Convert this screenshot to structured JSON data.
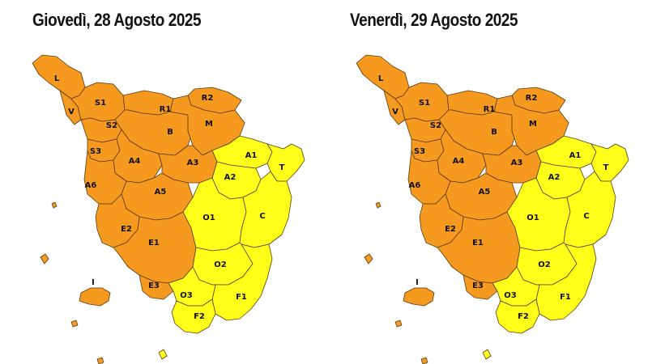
{
  "colors": {
    "orange": "#F59A1E",
    "yellow": "#FFFF1A",
    "border": "#5a3a14"
  },
  "legend_levels": {
    "orange": "orange",
    "yellow": "yellow"
  },
  "panels": [
    {
      "title": "Giovedì, 28 Agosto 2025",
      "zones": {
        "L": "orange",
        "V": "orange",
        "S1": "orange",
        "S2": "orange",
        "S3": "orange",
        "R1": "orange",
        "R2": "orange",
        "B": "orange",
        "M": "orange",
        "A4": "orange",
        "A3": "orange",
        "A5": "orange",
        "A6": "orange",
        "E2": "orange",
        "E1": "orange",
        "E3": "orange",
        "I": "orange",
        "A1": "yellow",
        "T": "yellow",
        "A2": "yellow",
        "O1": "yellow",
        "C": "yellow",
        "O2": "yellow",
        "O3": "yellow",
        "F1": "yellow",
        "F2": "yellow"
      }
    },
    {
      "title": "Venerdì, 29 Agosto 2025",
      "zones": {
        "L": "orange",
        "V": "orange",
        "S1": "orange",
        "S2": "orange",
        "S3": "orange",
        "R1": "orange",
        "R2": "orange",
        "B": "orange",
        "M": "orange",
        "A4": "orange",
        "A3": "orange",
        "A5": "orange",
        "A6": "orange",
        "E2": "orange",
        "E1": "orange",
        "E3": "orange",
        "I": "orange",
        "A1": "yellow",
        "T": "yellow",
        "A2": "yellow",
        "O1": "yellow",
        "C": "yellow",
        "O2": "yellow",
        "O3": "yellow",
        "F1": "yellow",
        "F2": "yellow"
      }
    }
  ]
}
